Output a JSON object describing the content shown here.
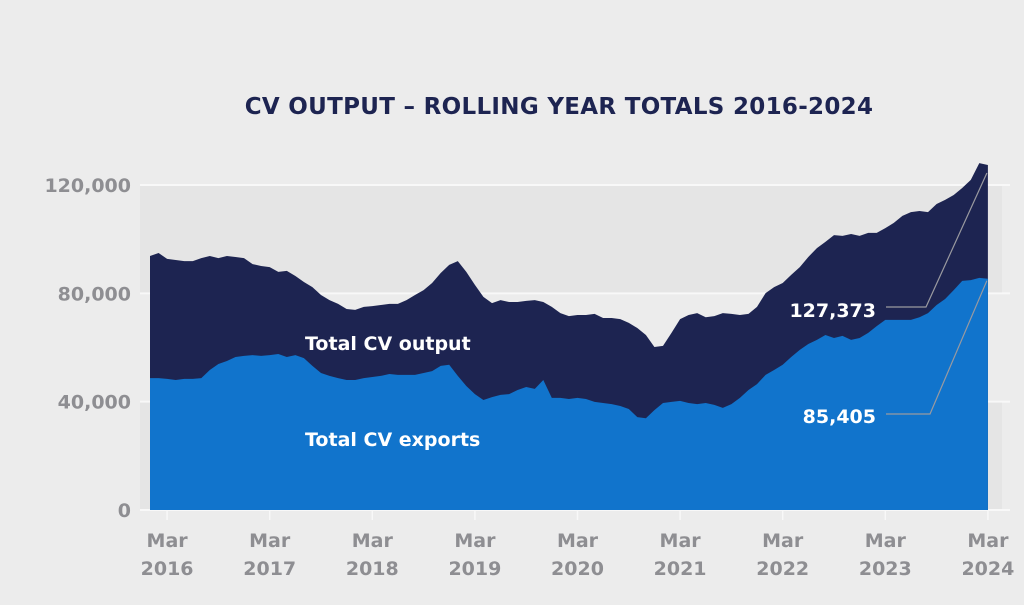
{
  "chart_data": {
    "type": "area",
    "title": "CV OUTPUT – ROLLING YEAR TOTALS 2016-2024",
    "xlabel": "",
    "ylabel": "",
    "ylim": [
      0,
      120000
    ],
    "yticks": [
      0,
      40000,
      80000,
      120000
    ],
    "ytick_labels": [
      "0",
      "40,000",
      "80,000",
      "120,000"
    ],
    "xtick_labels": [
      [
        "Mar",
        "2016"
      ],
      [
        "Mar",
        "2017"
      ],
      [
        "Mar",
        "2018"
      ],
      [
        "Mar",
        "2019"
      ],
      [
        "Mar",
        "2020"
      ],
      [
        "Mar",
        "2021"
      ],
      [
        "Mar",
        "2022"
      ],
      [
        "Mar",
        "2023"
      ],
      [
        "Mar",
        "2024"
      ]
    ],
    "x_start": "Jan 2016",
    "x_end": "Mar 2024",
    "x_interval": "monthly",
    "grid": "horizontal bands",
    "legend": "inline labels",
    "series": [
      {
        "name": "Total CV output",
        "color": "#1d2451",
        "values": [
          93800,
          94900,
          92700,
          92300,
          91900,
          91900,
          93000,
          93800,
          93000,
          93800,
          93400,
          93000,
          90800,
          90100,
          89700,
          87900,
          88300,
          86400,
          84200,
          82300,
          79400,
          77500,
          76100,
          74200,
          73900,
          75000,
          75300,
          75700,
          76100,
          76100,
          77500,
          79400,
          81200,
          83800,
          87500,
          90500,
          91900,
          87900,
          83100,
          78700,
          76400,
          77500,
          76800,
          76800,
          77200,
          77500,
          76800,
          75000,
          72700,
          71600,
          72000,
          72000,
          72400,
          70900,
          70900,
          70500,
          69100,
          67200,
          64600,
          60200,
          60600,
          65400,
          70500,
          72000,
          72700,
          71200,
          71600,
          72700,
          72400,
          72000,
          72400,
          75000,
          80100,
          82300,
          83800,
          86800,
          89700,
          93400,
          96700,
          99000,
          101500,
          101200,
          101900,
          101200,
          102300,
          102300,
          104100,
          106000,
          108600,
          110000,
          110400,
          110000,
          113000,
          114500,
          116300,
          118900,
          121900,
          128100,
          127373
        ]
      },
      {
        "name": "Total CV exports",
        "color": "#1174cc",
        "values": [
          48700,
          48700,
          48400,
          48000,
          48400,
          48400,
          48700,
          51700,
          53900,
          55000,
          56500,
          56900,
          57200,
          56900,
          57200,
          57600,
          56500,
          57200,
          56100,
          53200,
          50600,
          49500,
          48700,
          48000,
          48000,
          48700,
          49100,
          49500,
          50200,
          49900,
          49900,
          49900,
          50600,
          51300,
          53200,
          53600,
          49500,
          45800,
          42800,
          40600,
          41700,
          42500,
          42800,
          44300,
          45400,
          44700,
          48000,
          41400,
          41400,
          41000,
          41400,
          41000,
          39900,
          39500,
          39100,
          38400,
          37300,
          34300,
          33900,
          36900,
          39500,
          39900,
          40300,
          39500,
          39100,
          39500,
          38800,
          37700,
          39100,
          41400,
          44300,
          46500,
          49900,
          51700,
          53600,
          56500,
          59100,
          61300,
          62800,
          64600,
          63500,
          64300,
          62800,
          63500,
          65400,
          67900,
          70200,
          70200,
          70200,
          70200,
          71200,
          72700,
          75700,
          77900,
          81200,
          84600,
          84900,
          85700,
          85405
        ]
      }
    ],
    "annotations": [
      {
        "label": "127,373",
        "series": "Total CV output",
        "value": 127373,
        "at": "Mar 2024"
      },
      {
        "label": "85,405",
        "series": "Total CV exports",
        "value": 85405,
        "at": "Mar 2024"
      }
    ],
    "colors": {
      "background": "#ececec",
      "band": "#e5e5e5",
      "gridline": "#f8f8f8",
      "tick_text": "#8e8e92",
      "title": "#1d2451",
      "leader_line": "#9a9aa0"
    }
  }
}
